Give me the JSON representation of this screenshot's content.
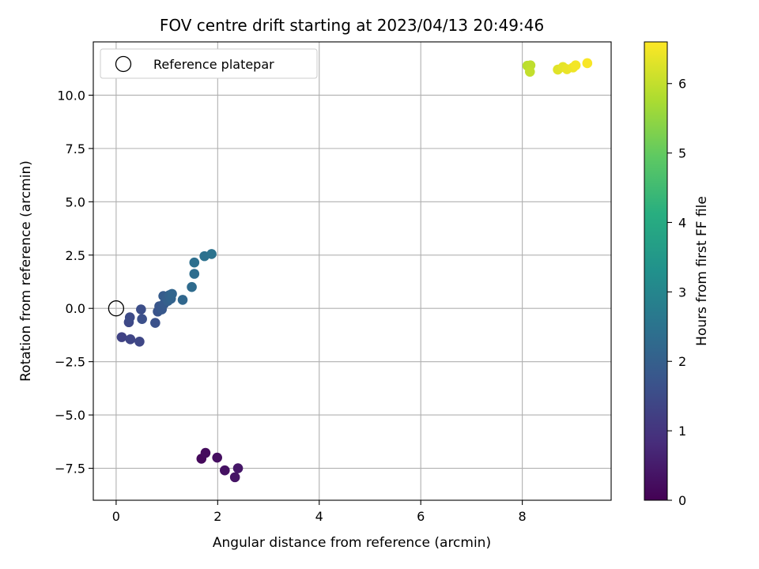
{
  "chart_data": {
    "type": "scatter",
    "title": "FOV centre drift starting at 2023/04/13 20:49:46",
    "xlabel": "Angular distance from reference (arcmin)",
    "ylabel": "Rotation from reference (arcmin)",
    "xlim": [
      -0.45,
      9.75
    ],
    "ylim": [
      -9.0,
      12.5
    ],
    "xticks": [
      0,
      2,
      4,
      6,
      8
    ],
    "xtick_labels": [
      "0",
      "2",
      "4",
      "6",
      "8"
    ],
    "yticks": [
      -7.5,
      -5.0,
      -2.5,
      0.0,
      2.5,
      5.0,
      7.5,
      10.0
    ],
    "ytick_labels": [
      "−7.5",
      "−5.0",
      "−2.5",
      "0.0",
      "2.5",
      "5.0",
      "7.5",
      "10.0"
    ],
    "grid": true,
    "legend": {
      "position": "upper-left",
      "entries": [
        "Reference platepar"
      ]
    },
    "reference": {
      "label": "Reference platepar",
      "x": 0.0,
      "y": 0.0,
      "marker": "open-circle"
    },
    "colorbar": {
      "label": "Hours from first FF file",
      "colormap": "viridis",
      "range": [
        0,
        6.6
      ],
      "ticks": [
        0,
        1,
        2,
        3,
        4,
        5,
        6
      ],
      "tick_labels": [
        "0",
        "1",
        "2",
        "3",
        "4",
        "5",
        "6"
      ]
    },
    "series": [
      {
        "points": [
          {
            "x": 1.68,
            "y": -7.05,
            "c": 0.15
          },
          {
            "x": 1.76,
            "y": -6.78,
            "c": 0.2
          },
          {
            "x": 1.99,
            "y": -7.0,
            "c": 0.25
          },
          {
            "x": 2.14,
            "y": -7.6,
            "c": 0.3
          },
          {
            "x": 2.34,
            "y": -7.92,
            "c": 0.35
          },
          {
            "x": 2.4,
            "y": -7.5,
            "c": 0.4
          },
          {
            "x": 0.11,
            "y": -1.35,
            "c": 1.3
          },
          {
            "x": 0.28,
            "y": -1.45,
            "c": 1.35
          },
          {
            "x": 0.46,
            "y": -1.56,
            "c": 1.4
          },
          {
            "x": 0.25,
            "y": -0.65,
            "c": 1.45
          },
          {
            "x": 0.27,
            "y": -0.42,
            "c": 1.5
          },
          {
            "x": 0.49,
            "y": -0.05,
            "c": 1.55
          },
          {
            "x": 0.51,
            "y": -0.5,
            "c": 1.6
          },
          {
            "x": 0.77,
            "y": -0.68,
            "c": 1.65
          },
          {
            "x": 0.82,
            "y": -0.15,
            "c": 1.7
          },
          {
            "x": 0.85,
            "y": 0.1,
            "c": 1.75
          },
          {
            "x": 0.9,
            "y": -0.05,
            "c": 1.8
          },
          {
            "x": 0.94,
            "y": 0.2,
            "c": 1.85
          },
          {
            "x": 0.93,
            "y": 0.58,
            "c": 1.9
          },
          {
            "x": 1.0,
            "y": 0.5,
            "c": 1.95
          },
          {
            "x": 1.02,
            "y": 0.35,
            "c": 2.0
          },
          {
            "x": 1.05,
            "y": 0.62,
            "c": 2.05
          },
          {
            "x": 1.08,
            "y": 0.45,
            "c": 2.1
          },
          {
            "x": 1.1,
            "y": 0.68,
            "c": 2.15
          },
          {
            "x": 1.31,
            "y": 0.4,
            "c": 2.2
          },
          {
            "x": 1.49,
            "y": 1.0,
            "c": 2.3
          },
          {
            "x": 1.54,
            "y": 1.62,
            "c": 2.35
          },
          {
            "x": 1.54,
            "y": 2.15,
            "c": 2.4
          },
          {
            "x": 1.74,
            "y": 2.45,
            "c": 2.45
          },
          {
            "x": 1.88,
            "y": 2.55,
            "c": 2.5
          },
          {
            "x": 8.1,
            "y": 11.38,
            "c": 5.9
          },
          {
            "x": 8.16,
            "y": 11.4,
            "c": 5.95
          },
          {
            "x": 8.15,
            "y": 11.1,
            "c": 6.0
          },
          {
            "x": 8.7,
            "y": 11.2,
            "c": 6.3
          },
          {
            "x": 8.8,
            "y": 11.32,
            "c": 6.35
          },
          {
            "x": 8.88,
            "y": 11.22,
            "c": 6.4
          },
          {
            "x": 9.0,
            "y": 11.3,
            "c": 6.45
          },
          {
            "x": 9.05,
            "y": 11.4,
            "c": 6.5
          },
          {
            "x": 9.28,
            "y": 11.5,
            "c": 6.55
          }
        ]
      }
    ]
  }
}
